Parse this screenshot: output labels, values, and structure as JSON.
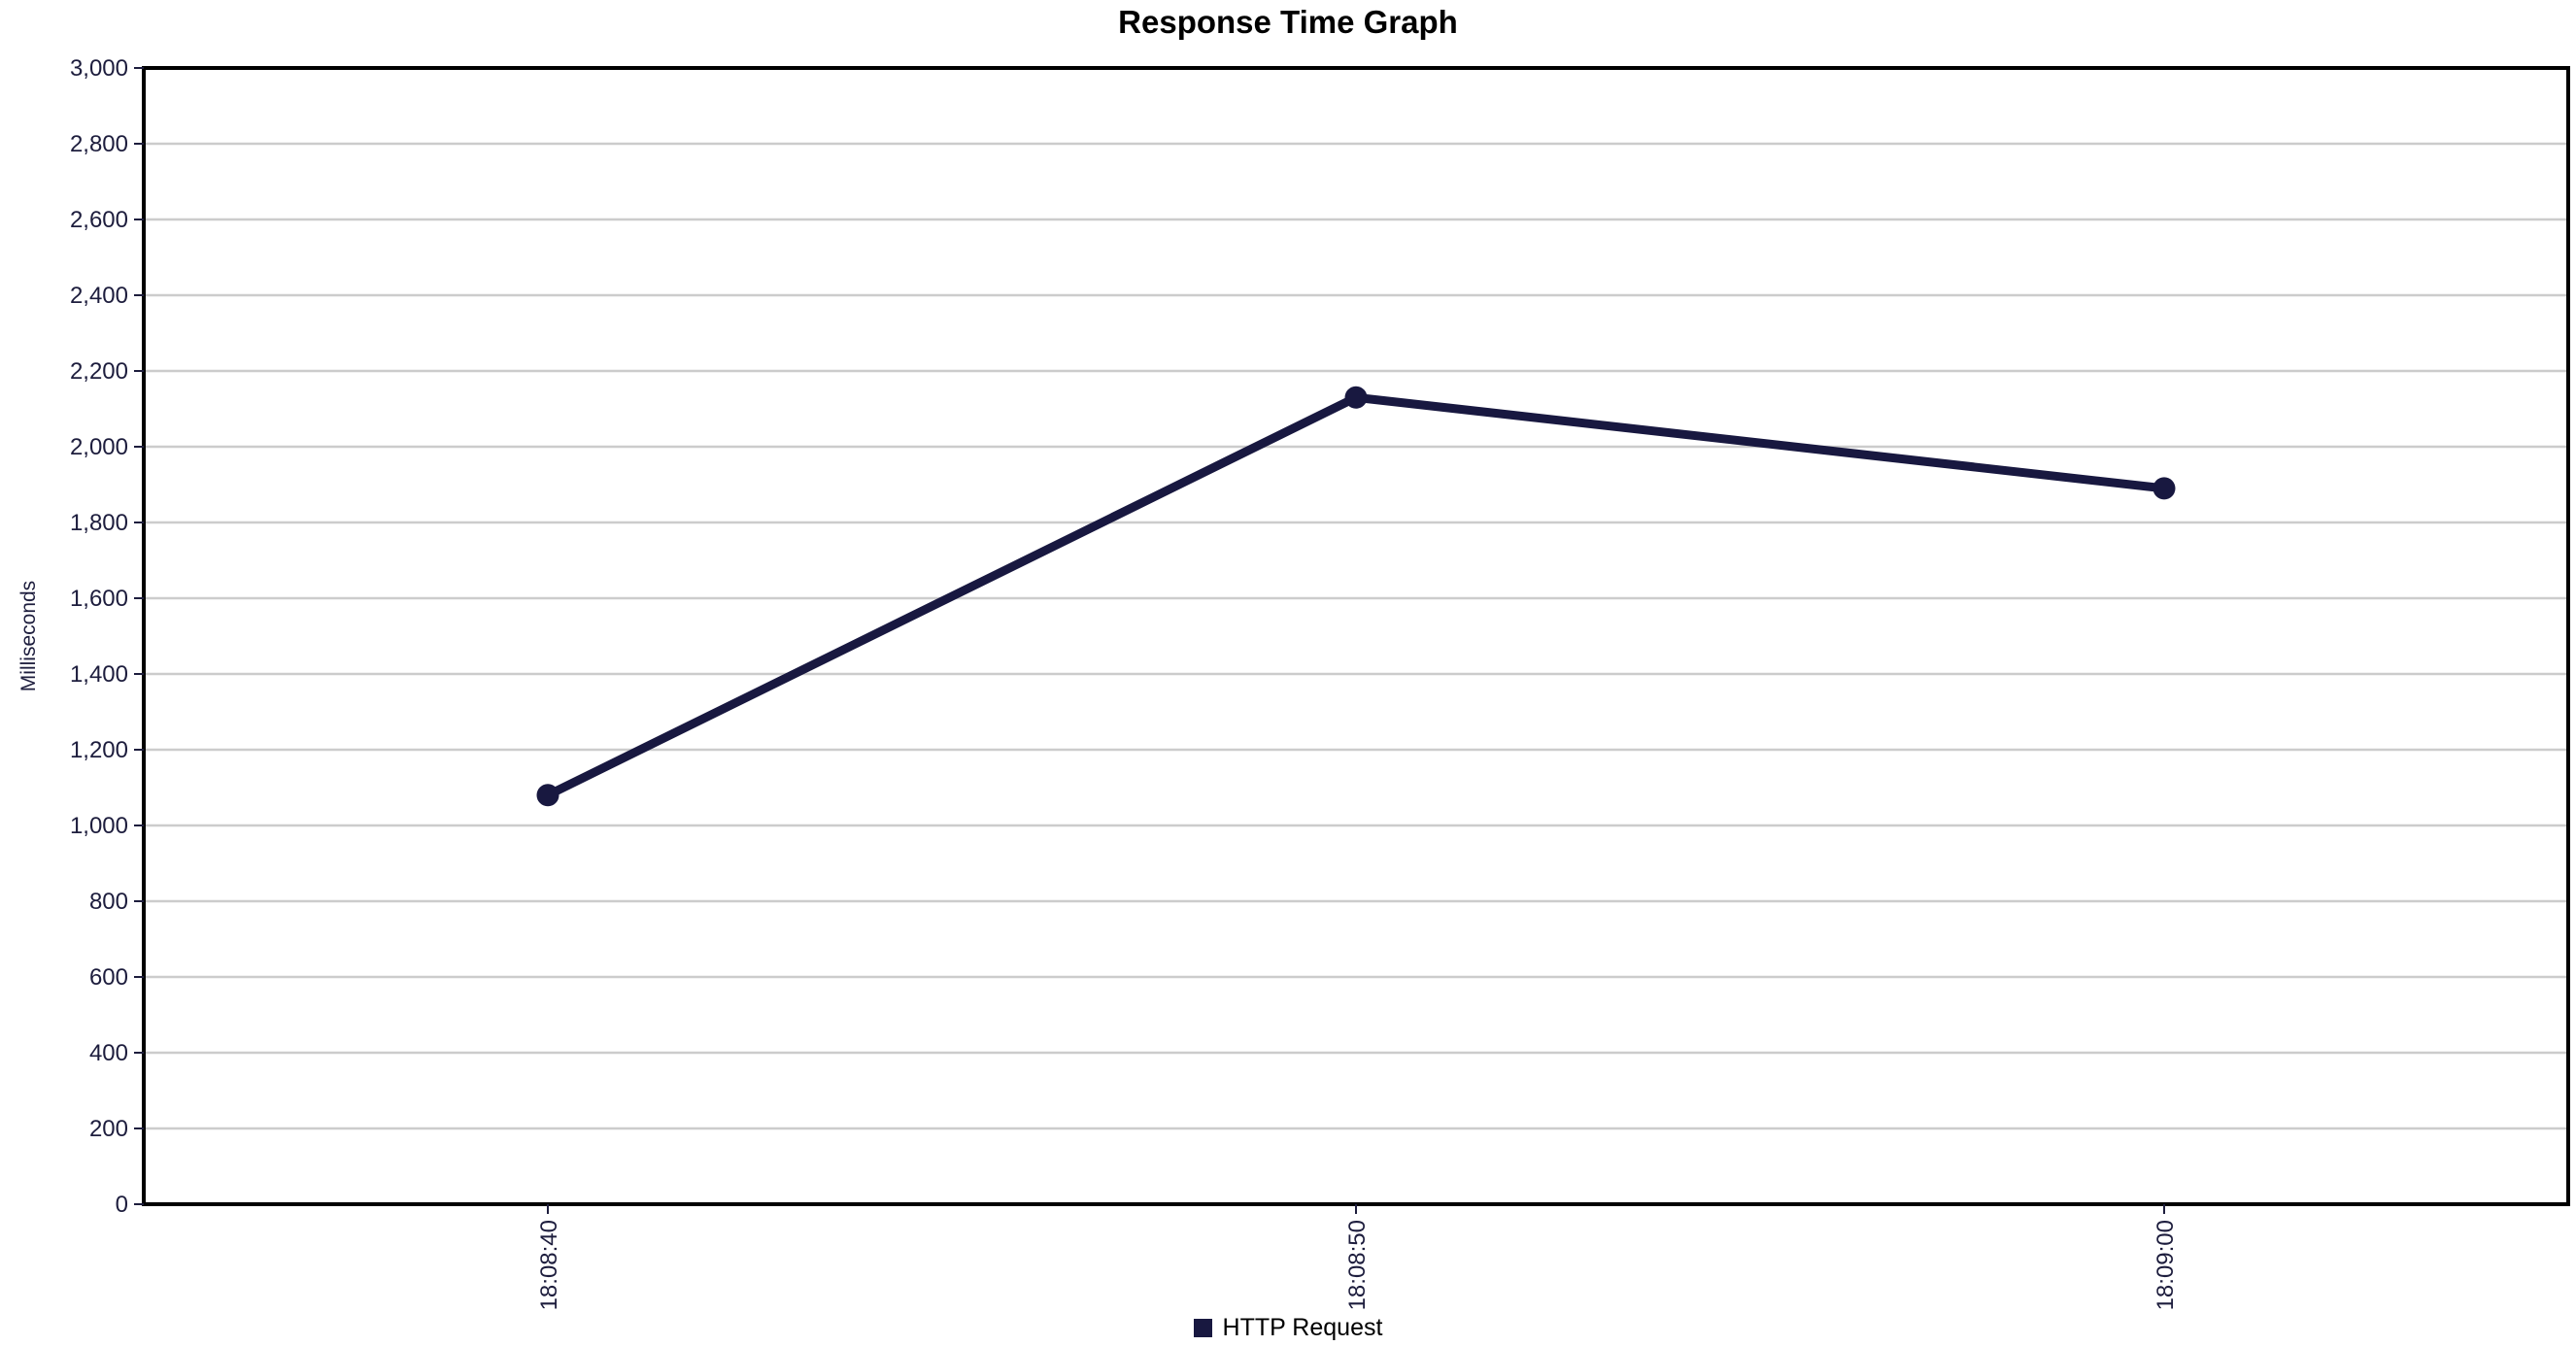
{
  "title": "Response Time Graph",
  "colors": {
    "background": "#ffffff",
    "series": "#181840",
    "grid": "#cccccc",
    "plot_border": "#000000",
    "tick_label": "#1d1d3d",
    "title_text": "#000000",
    "legend_text": "#000000"
  },
  "chart_data": {
    "type": "line",
    "title": "Response Time Graph",
    "xlabel": "",
    "ylabel": "Milliseconds",
    "categories": [
      "18:08:40",
      "18:08:50",
      "18:09:00"
    ],
    "series": [
      {
        "name": "HTTP Request",
        "values": [
          1080,
          2130,
          1890
        ],
        "color": "#181840"
      }
    ],
    "ylim": [
      0,
      3000
    ],
    "y_tick_step": 200,
    "y_tick_labels": [
      "0",
      "200",
      "400",
      "600",
      "800",
      "1,000",
      "1,200",
      "1,400",
      "1,600",
      "1,800",
      "2,000",
      "2,200",
      "2,400",
      "2,600",
      "2,800",
      "3,000"
    ],
    "grid": "horizontal",
    "x_tick_label_rotation": -90,
    "legend_position": "bottom-center",
    "markers": true
  }
}
